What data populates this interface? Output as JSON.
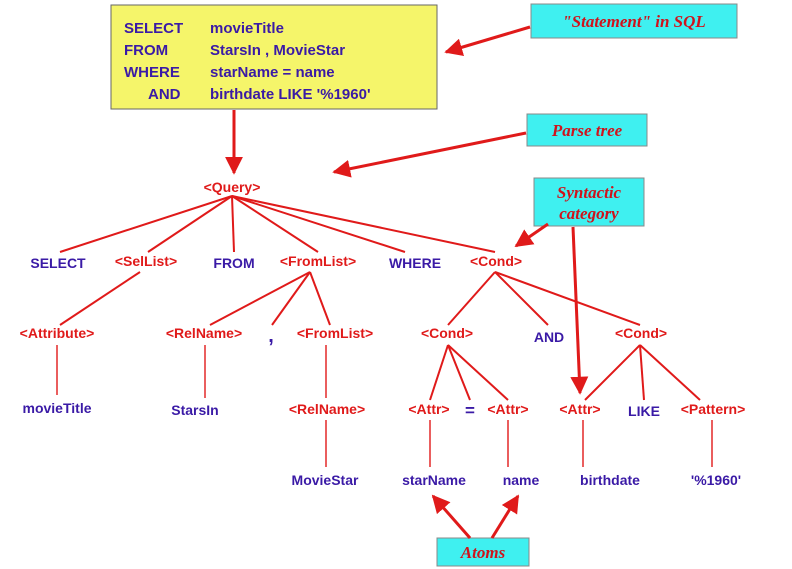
{
  "sql": {
    "line1_kw": "SELECT",
    "line1_val": "movieTitle",
    "line2_kw": "FROM",
    "line2_val": "StarsIn , MovieStar",
    "line3_kw": "WHERE",
    "line3_val": "starName = name",
    "line4_kw": "AND",
    "line4_val": "birthdate LIKE '%1960'"
  },
  "annotations": {
    "statement": "\"Statement\" in SQL",
    "parse_tree": "Parse tree",
    "syntactic_1": "Syntactic",
    "syntactic_2": "category",
    "atoms": "Atoms"
  },
  "tree": {
    "query": "<Query>",
    "select": "SELECT",
    "sellist": "<SelList>",
    "from": "FROM",
    "fromlist": "<FromList>",
    "where": "WHERE",
    "cond_top": "<Cond>",
    "attribute": "<Attribute>",
    "relname1": "<RelName>",
    "comma": ",",
    "fromlist2": "<FromList>",
    "cond_left": "<Cond>",
    "and": "AND",
    "cond_right": "<Cond>",
    "movietitle": "movieTitle",
    "starsin": "StarsIn",
    "relname2": "<RelName>",
    "attr1": "<Attr>",
    "eq": "=",
    "attr2": "<Attr>",
    "attr3": "<Attr>",
    "like": "LIKE",
    "pattern": "<Pattern>",
    "moviestar": "MovieStar",
    "starname": "starName",
    "name": "name",
    "birthdate": "birthdate",
    "pattern_val": "'%1960'"
  },
  "colors": {
    "sql_box": "#f5f56a",
    "annotation_box": "#3ff0f0",
    "category_text": "#e01a1a",
    "token_text": "#3a1aa6",
    "edge": "#e01a1a"
  }
}
